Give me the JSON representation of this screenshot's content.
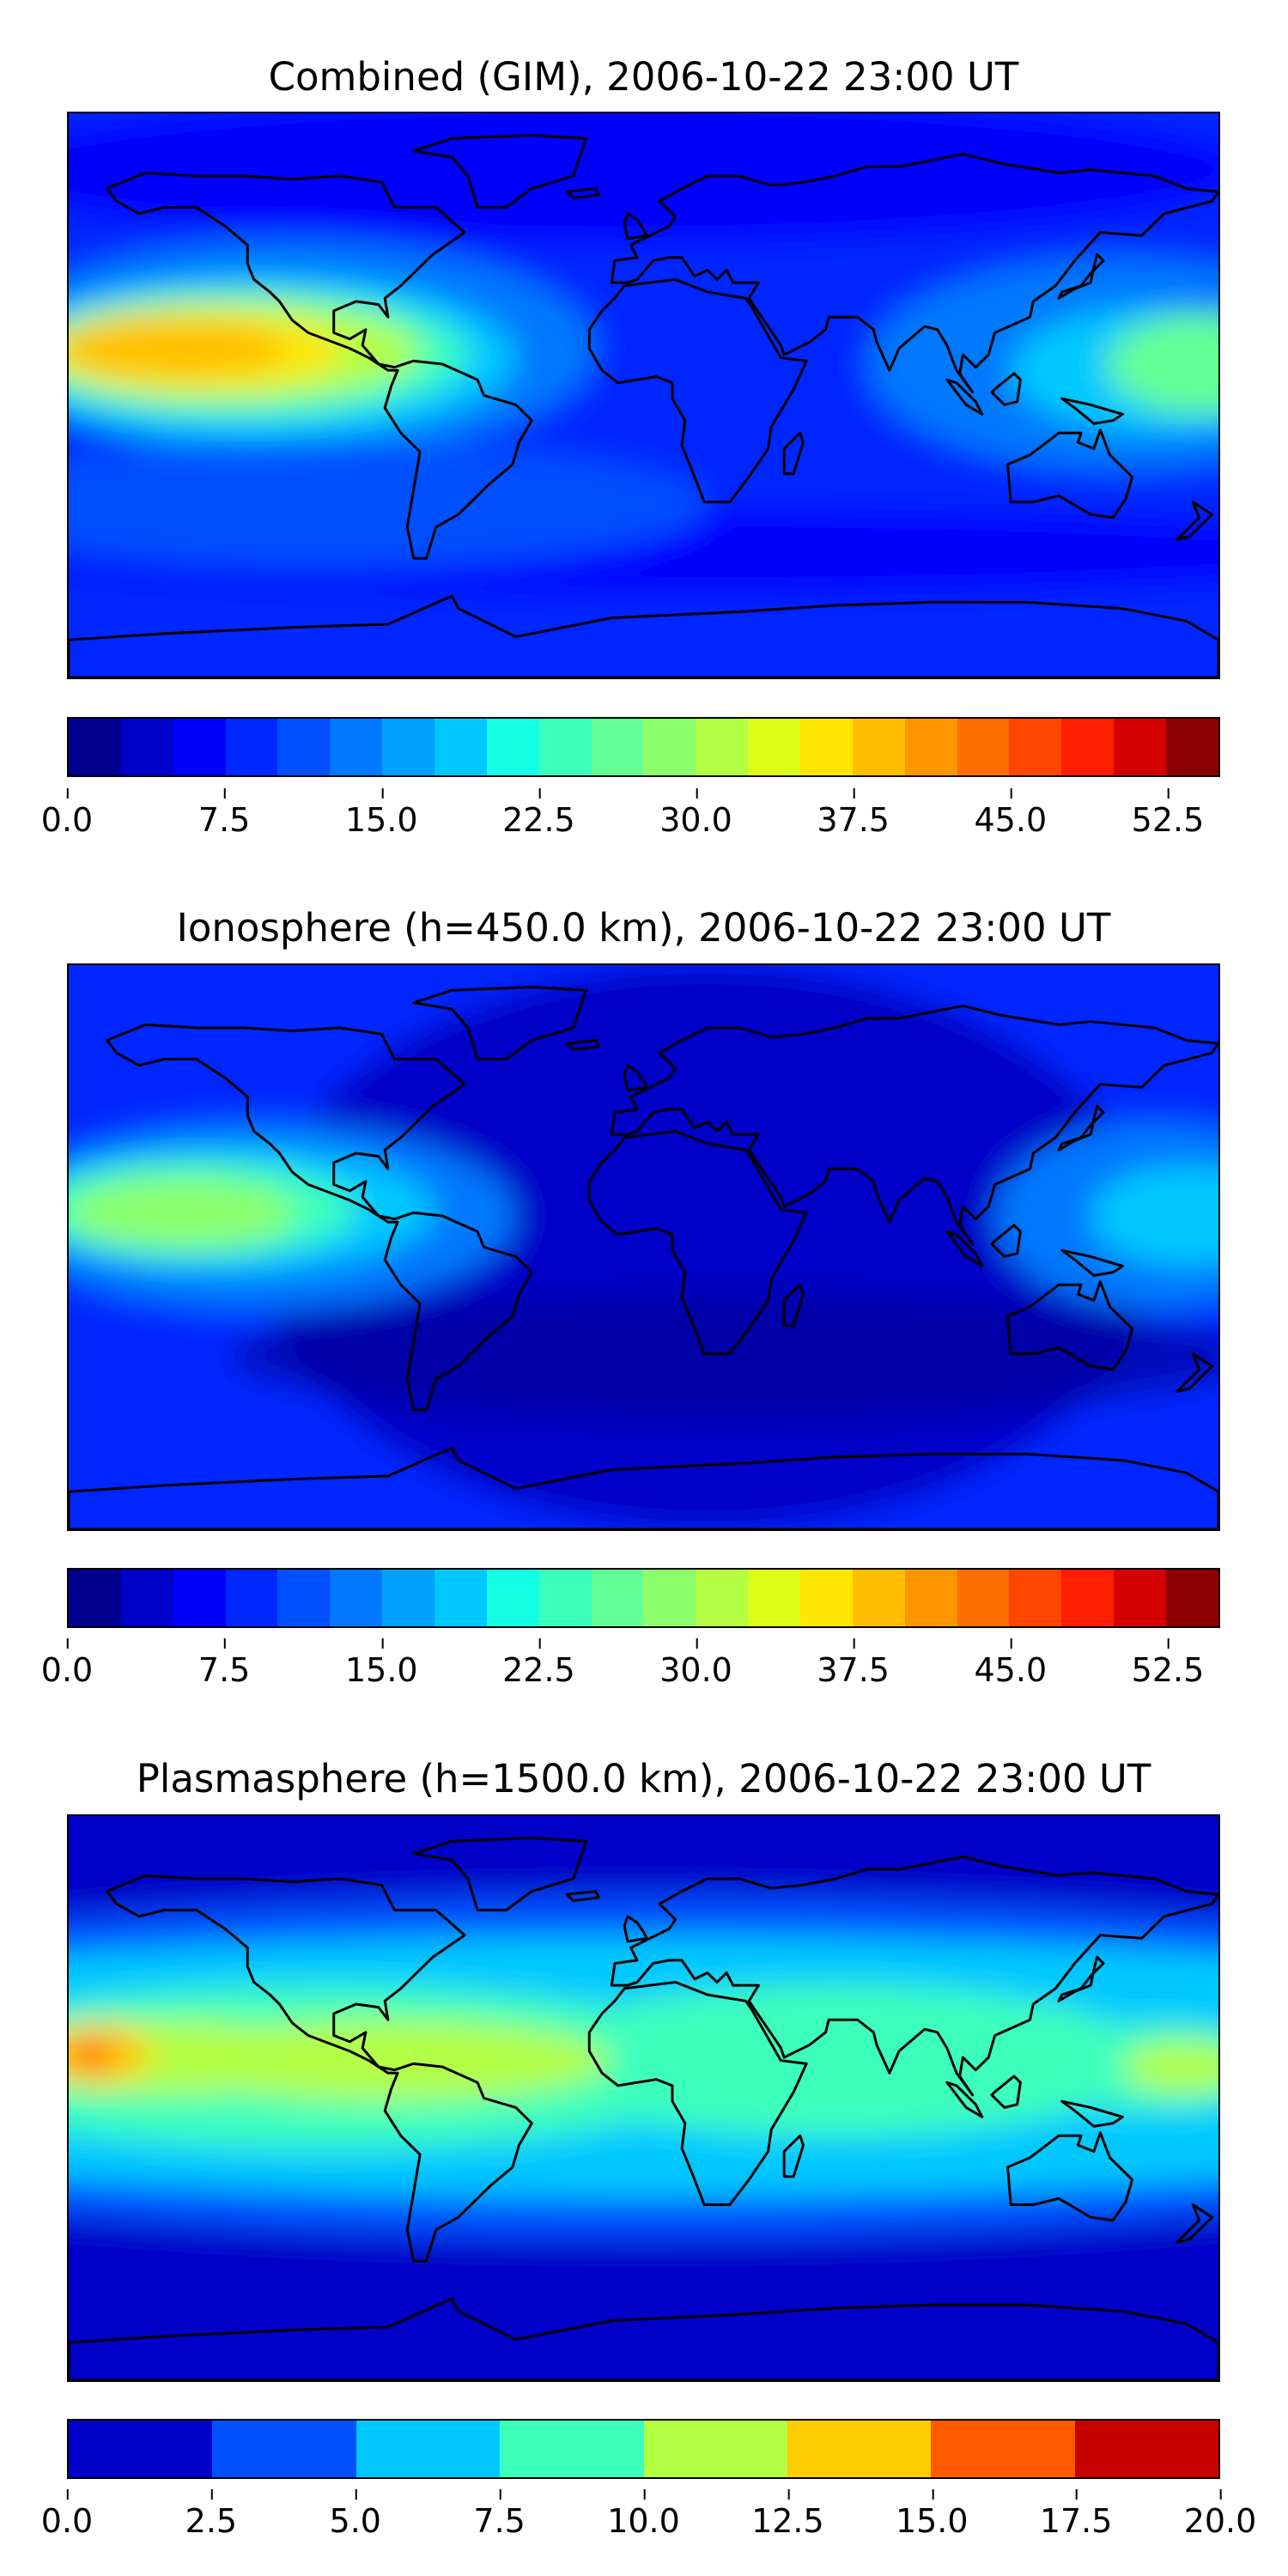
{
  "panels": [
    {
      "title": "Combined (GIM), 2006-10-22 23:00 UT",
      "field": "combined",
      "colorbar": {
        "colors": [
          "#00008f",
          "#0000c8",
          "#0000ff",
          "#0028ff",
          "#0050ff",
          "#0078ff",
          "#00a0ff",
          "#00c8ff",
          "#14ffe4",
          "#3cffbc",
          "#64ff94",
          "#8cff6c",
          "#b4ff44",
          "#dcff1c",
          "#ffe600",
          "#ffbf00",
          "#ff9600",
          "#ff6e00",
          "#ff4600",
          "#ff1e00",
          "#d40000",
          "#8b0000"
        ],
        "ticks": [
          "0.0",
          "7.5",
          "15.0",
          "22.5",
          "30.0",
          "37.5",
          "45.0",
          "52.5"
        ],
        "tick_values": [
          0,
          7.5,
          15,
          22.5,
          30,
          37.5,
          45,
          52.5
        ],
        "vmin": 0,
        "vmax": 55
      }
    },
    {
      "title": "Ionosphere  (h=450.0 km), 2006-10-22 23:00 UT",
      "field": "ionosphere",
      "colorbar": {
        "colors": [
          "#00008f",
          "#0000c8",
          "#0000ff",
          "#0028ff",
          "#0050ff",
          "#0078ff",
          "#00a0ff",
          "#00c8ff",
          "#14ffe4",
          "#3cffbc",
          "#64ff94",
          "#8cff6c",
          "#b4ff44",
          "#dcff1c",
          "#ffe600",
          "#ffbf00",
          "#ff9600",
          "#ff6e00",
          "#ff4600",
          "#ff1e00",
          "#d40000",
          "#8b0000"
        ],
        "ticks": [
          "0.0",
          "7.5",
          "15.0",
          "22.5",
          "30.0",
          "37.5",
          "45.0",
          "52.5"
        ],
        "tick_values": [
          0,
          7.5,
          15,
          22.5,
          30,
          37.5,
          45,
          52.5
        ],
        "vmin": 0,
        "vmax": 55
      }
    },
    {
      "title": "Plasmasphere (h=1500.0 km), 2006-10-22 23:00 UT",
      "field": "plasmasphere",
      "colorbar": {
        "colors": [
          "#0000c8",
          "#0050ff",
          "#00c8ff",
          "#3cffbc",
          "#b4ff44",
          "#ffcc00",
          "#ff5a00",
          "#c80000"
        ],
        "ticks": [
          "0.0",
          "2.5",
          "5.0",
          "7.5",
          "10.0",
          "12.5",
          "15.0",
          "17.5",
          "20.0"
        ],
        "tick_values": [
          0,
          2.5,
          5,
          7.5,
          10,
          12.5,
          15,
          17.5,
          20
        ],
        "vmin": 0,
        "vmax": 20
      }
    }
  ]
}
